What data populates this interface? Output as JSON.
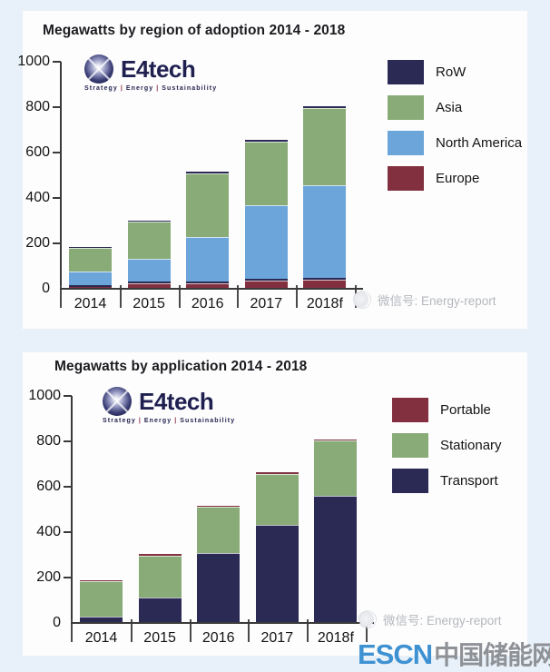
{
  "logo": {
    "name": "E4tech",
    "tagline_parts": [
      "Strategy",
      "Energy",
      "Sustainability"
    ],
    "tagline_separator": "|"
  },
  "watermark": {
    "text": "微信号: Energy-report"
  },
  "escn": {
    "latin": "ESCN",
    "chinese": "中国储能网"
  },
  "colors": {
    "background": "#e8f1f9",
    "panel": "#fdfdfe",
    "row_navy": "#2b2a55",
    "asia_green": "#88ab77",
    "north_america_blue": "#6ba5d9",
    "europe_red": "#82303f",
    "escn_blue": "#3f92d2",
    "escn_gray": "#8e9196"
  },
  "chart_data": [
    {
      "type": "bar",
      "stacked": true,
      "title": "Megawatts by region of adoption 2014 - 2018",
      "categories": [
        "2014",
        "2015",
        "2016",
        "2017",
        "2018f"
      ],
      "series": [
        {
          "name": "Europe",
          "color": "#82303f",
          "values": [
            8,
            24,
            24,
            38,
            42
          ]
        },
        {
          "name": "North America",
          "color": "#6ba5d9",
          "values": [
            67,
            108,
            204,
            330,
            414
          ]
        },
        {
          "name": "Asia",
          "color": "#88ab77",
          "values": [
            105,
            163,
            282,
            282,
            339
          ]
        },
        {
          "name": "RoW",
          "color": "#2b2a55",
          "values": [
            5,
            5,
            5,
            5,
            8
          ]
        }
      ],
      "legend": [
        "RoW",
        "Asia",
        "North America",
        "Europe"
      ],
      "legend_position": "right",
      "xlabel": "",
      "ylabel": "",
      "ylim": [
        0,
        1000
      ],
      "y_ticks": [
        0,
        200,
        400,
        600,
        800,
        1000
      ],
      "grid": false
    },
    {
      "type": "bar",
      "stacked": true,
      "title": "Megawatts by application 2014 - 2018",
      "categories": [
        "2014",
        "2015",
        "2016",
        "2017",
        "2018f"
      ],
      "series": [
        {
          "name": "Transport",
          "color": "#2b2a55",
          "values": [
            30,
            113,
            308,
            433,
            560
          ]
        },
        {
          "name": "Stationary",
          "color": "#88ab77",
          "values": [
            155,
            185,
            205,
            222,
            243
          ]
        },
        {
          "name": "Portable",
          "color": "#82303f",
          "values": [
            3,
            5,
            5,
            8,
            7
          ]
        }
      ],
      "legend": [
        "Portable",
        "Stationary",
        "Transport"
      ],
      "legend_position": "right",
      "xlabel": "",
      "ylabel": "",
      "ylim": [
        0,
        1000
      ],
      "y_ticks": [
        0,
        200,
        400,
        600,
        800,
        1000
      ],
      "grid": false
    }
  ]
}
